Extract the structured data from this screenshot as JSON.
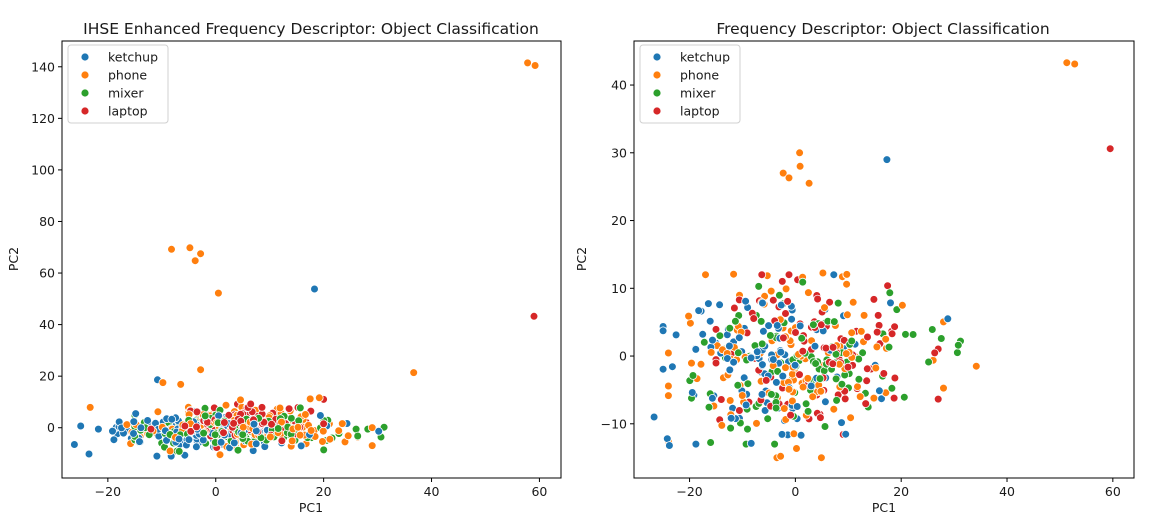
{
  "colors": {
    "ketchup": "#1f77b4",
    "phone": "#ff7f0e",
    "mixer": "#2ca02c",
    "laptop": "#d62728"
  },
  "chart_data": [
    {
      "type": "scatter",
      "title": "IHSE Enhanced Frequency Descriptor: Object Classification",
      "xlabel": "PC1",
      "ylabel": "PC2",
      "xlim": [
        -28.5,
        64
      ],
      "ylim": [
        -19.5,
        150
      ],
      "xticks": [
        -20,
        0,
        20,
        40,
        60
      ],
      "yticks": [
        0,
        20,
        40,
        60,
        80,
        100,
        120,
        140
      ],
      "legend": [
        "ketchup",
        "phone",
        "mixer",
        "laptop"
      ],
      "legend_position": "upper-left",
      "outliers": [
        {
          "series": "phone",
          "x": 57.8,
          "y": 141.5
        },
        {
          "series": "phone",
          "x": 59.2,
          "y": 140.5
        },
        {
          "series": "laptop",
          "x": 59.0,
          "y": 43.2
        },
        {
          "series": "ketchup",
          "x": 18.3,
          "y": 53.8
        },
        {
          "series": "phone",
          "x": 0.5,
          "y": 52.2
        },
        {
          "series": "phone",
          "x": -8.2,
          "y": 69.2
        },
        {
          "series": "phone",
          "x": -4.8,
          "y": 69.8
        },
        {
          "series": "phone",
          "x": -2.8,
          "y": 67.5
        },
        {
          "series": "phone",
          "x": -3.8,
          "y": 64.8
        },
        {
          "series": "phone",
          "x": 36.7,
          "y": 21.4
        },
        {
          "series": "phone",
          "x": 17.5,
          "y": 11.2
        },
        {
          "series": "phone",
          "x": 19.2,
          "y": 11.6
        },
        {
          "series": "phone",
          "x": -6.5,
          "y": 16.8
        },
        {
          "series": "phone",
          "x": -2.8,
          "y": 22.5
        },
        {
          "series": "ketchup",
          "x": -10.8,
          "y": 18.6
        },
        {
          "series": "phone",
          "x": -9.8,
          "y": 17.5
        },
        {
          "series": "ketchup",
          "x": -26.2,
          "y": -6.5
        },
        {
          "series": "ketchup",
          "x": -23.5,
          "y": -10.2
        },
        {
          "series": "mixer",
          "x": 31.2,
          "y": 0.2
        },
        {
          "series": "ketchup",
          "x": 30.2,
          "y": -1.4
        }
      ],
      "clusters": [
        {
          "series": "ketchup",
          "center": [
            -2,
            -1.5
          ],
          "spread": [
            9,
            3.5
          ],
          "n": 160,
          "xrange": [
            -26,
            29
          ],
          "yrange": [
            -11,
            15
          ]
        },
        {
          "series": "phone",
          "center": [
            4,
            0
          ],
          "spread": [
            10,
            3.8
          ],
          "n": 170,
          "xrange": [
            -25,
            29
          ],
          "yrange": [
            -12,
            14
          ]
        },
        {
          "series": "mixer",
          "center": [
            3,
            -0.5
          ],
          "spread": [
            10,
            3.3
          ],
          "n": 150,
          "xrange": [
            -15,
            31
          ],
          "yrange": [
            -10,
            13
          ]
        },
        {
          "series": "laptop",
          "center": [
            5,
            1.5
          ],
          "spread": [
            7,
            3
          ],
          "n": 120,
          "xrange": [
            -12,
            20
          ],
          "yrange": [
            -8,
            11
          ]
        }
      ]
    },
    {
      "type": "scatter",
      "title": "Frequency Descriptor: Object Classification",
      "xlabel": "PC1",
      "ylabel": "PC2",
      "xlim": [
        -30.5,
        64
      ],
      "ylim": [
        -18,
        46.5
      ],
      "xticks": [
        -20,
        0,
        20,
        40,
        60
      ],
      "yticks": [
        -10,
        0,
        10,
        20,
        30,
        40
      ],
      "legend": [
        "ketchup",
        "phone",
        "mixer",
        "laptop"
      ],
      "legend_position": "upper-left",
      "outliers": [
        {
          "series": "phone",
          "x": 51.3,
          "y": 43.3
        },
        {
          "series": "phone",
          "x": 52.8,
          "y": 43.1
        },
        {
          "series": "laptop",
          "x": 59.5,
          "y": 30.6
        },
        {
          "series": "ketchup",
          "x": 17.3,
          "y": 29.0
        },
        {
          "series": "phone",
          "x": 0.8,
          "y": 30.0
        },
        {
          "series": "phone",
          "x": 0.9,
          "y": 28.0
        },
        {
          "series": "phone",
          "x": -2.3,
          "y": 27.0
        },
        {
          "series": "phone",
          "x": -1.2,
          "y": 26.3
        },
        {
          "series": "phone",
          "x": 2.6,
          "y": 25.5
        },
        {
          "series": "phone",
          "x": 34.2,
          "y": -1.5
        },
        {
          "series": "mixer",
          "x": 31.2,
          "y": 2.2
        },
        {
          "series": "mixer",
          "x": 30.8,
          "y": 1.6
        },
        {
          "series": "ketchup",
          "x": 28.8,
          "y": 5.5
        },
        {
          "series": "ketchup",
          "x": -24.2,
          "y": -12.2
        },
        {
          "series": "ketchup",
          "x": -23.8,
          "y": -13.2
        },
        {
          "series": "ketchup",
          "x": -26.7,
          "y": -9.0
        },
        {
          "series": "phone",
          "x": -3.5,
          "y": -15.0
        },
        {
          "series": "phone",
          "x": -2.8,
          "y": -14.8
        }
      ],
      "clusters": [
        {
          "series": "ketchup",
          "center": [
            -6,
            -1
          ],
          "spread": [
            9,
            5.5
          ],
          "n": 120,
          "xrange": [
            -25,
            29
          ],
          "yrange": [
            -13,
            12
          ]
        },
        {
          "series": "phone",
          "center": [
            0,
            0
          ],
          "spread": [
            11,
            6
          ],
          "n": 130,
          "xrange": [
            -24,
            28
          ],
          "yrange": [
            -15,
            16
          ]
        },
        {
          "series": "mixer",
          "center": [
            2,
            -1
          ],
          "spread": [
            11,
            5.5
          ],
          "n": 110,
          "xrange": [
            -22,
            31
          ],
          "yrange": [
            -13,
            11
          ]
        },
        {
          "series": "laptop",
          "center": [
            5,
            0
          ],
          "spread": [
            10,
            5.5
          ],
          "n": 100,
          "xrange": [
            -15,
            27
          ],
          "yrange": [
            -12,
            12
          ]
        }
      ]
    }
  ]
}
